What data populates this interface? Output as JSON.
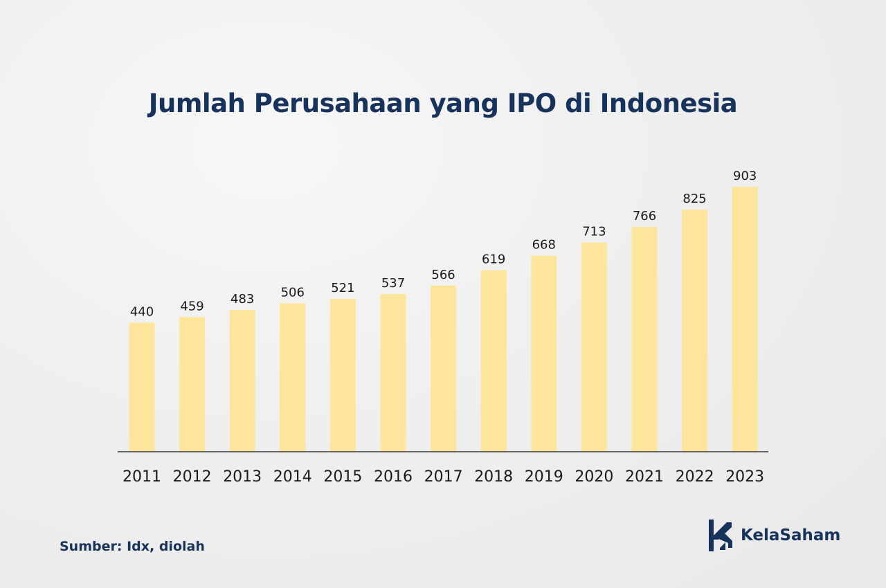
{
  "colors": {
    "navy": "#17335c",
    "bar": "#fde69b",
    "text": "#1a1a1a",
    "axis": "#333333"
  },
  "title": "Jumlah Perusahaan yang IPO di Indonesia",
  "source": "Sumber: Idx, diolah",
  "brand": {
    "name": "KelaSaham",
    "icon": "kelasaham-logo-icon"
  },
  "chart_data": {
    "type": "bar",
    "title": "Jumlah Perusahaan yang IPO di Indonesia",
    "xlabel": "",
    "ylabel": "",
    "categories": [
      "2011",
      "2012",
      "2013",
      "2014",
      "2015",
      "2016",
      "2017",
      "2018",
      "2019",
      "2020",
      "2021",
      "2022",
      "2023"
    ],
    "values": [
      440,
      459,
      483,
      506,
      521,
      537,
      566,
      619,
      668,
      713,
      766,
      825,
      903
    ],
    "ylim": [
      0,
      903
    ],
    "grid": false,
    "legend": "none",
    "data_labels": true
  }
}
